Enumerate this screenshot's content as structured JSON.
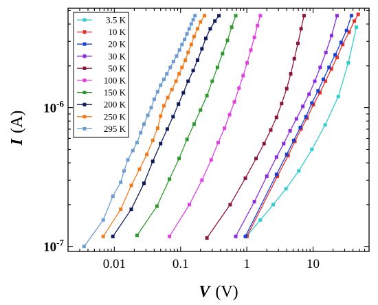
{
  "chart_data": {
    "type": "line",
    "title": "",
    "xlabel_symbol": "V",
    "xlabel_unit": "(V)",
    "ylabel_symbol": "I",
    "ylabel_unit": "(A)",
    "xscale": "log",
    "yscale": "log",
    "xlim": [
      0.002,
      70
    ],
    "ylim": [
      9.2e-08,
      5.2e-06
    ],
    "x_ticks": [
      {
        "value": 0.01,
        "label": "0.01"
      },
      {
        "value": 0.1,
        "label": "0.1"
      },
      {
        "value": 1,
        "label": "1"
      },
      {
        "value": 10,
        "label": "10"
      }
    ],
    "y_ticks": [
      {
        "value": 1e-07,
        "base": "10",
        "exp": "-7"
      },
      {
        "value": 1e-06,
        "base": "10",
        "exp": "-6"
      }
    ],
    "grid": false,
    "legend_position": "top-left",
    "series": [
      {
        "name": "3.5 K",
        "color": "#33cccc",
        "x": [
          0.98,
          1.02,
          1.6,
          2.5,
          3.9,
          6.1,
          9.6,
          15.2,
          24,
          34,
          45
        ],
        "y": [
          1.18e-07,
          1.2e-07,
          1.55e-07,
          2e-07,
          2.6e-07,
          3.5e-07,
          5e-07,
          7.5e-07,
          1.2e-06,
          2.1e-06,
          3.8e-06
        ]
      },
      {
        "name": "10 K",
        "color": "#e8302a",
        "x": [
          1.0,
          2.9,
          4.2,
          5.3,
          6.6,
          8.1,
          10.1,
          12.7,
          15.4,
          18.9,
          23,
          28,
          35,
          42,
          48
        ],
        "y": [
          1.18e-07,
          3.2e-07,
          4.5e-07,
          5.7e-07,
          7e-07,
          8.4e-07,
          1.05e-06,
          1.28e-06,
          1.55e-06,
          1.9e-06,
          2.3e-06,
          2.85e-06,
          3.5e-06,
          4.2e-06,
          4.7e-06
        ]
      },
      {
        "name": "20 K",
        "color": "#1a3fd6",
        "x": [
          0.95,
          2.8,
          4.0,
          5.1,
          6.4,
          7.8,
          9.6,
          11.9,
          14.3,
          17.4,
          21.5,
          26.5,
          32,
          38
        ],
        "y": [
          1.18e-07,
          3.3e-07,
          4.6e-07,
          5.8e-07,
          7.2e-07,
          8.6e-07,
          1.08e-06,
          1.32e-06,
          1.6e-06,
          1.95e-06,
          2.4e-06,
          2.95e-06,
          3.6e-06,
          4.6e-06
        ]
      },
      {
        "name": "30 K",
        "color": "#8a2be2",
        "x": [
          0.68,
          1.3,
          2.0,
          2.8,
          3.6,
          4.5,
          5.6,
          7.0,
          8.7,
          10.6,
          12.8,
          15.6,
          19,
          23
        ],
        "y": [
          1.18e-07,
          2.1e-07,
          3.2e-07,
          4.4e-07,
          5.5e-07,
          6.8e-07,
          8.3e-07,
          1.02e-06,
          1.25e-06,
          1.55e-06,
          1.95e-06,
          2.5e-06,
          3.3e-06,
          4.6e-06
        ]
      },
      {
        "name": "50 K",
        "color": "#8b1538",
        "x": [
          0.25,
          0.56,
          0.95,
          1.38,
          1.82,
          2.3,
          2.8,
          3.35,
          4.0,
          4.6,
          5.2,
          5.9,
          6.6,
          7.3
        ],
        "y": [
          1.15e-07,
          2e-07,
          3.1e-07,
          4.3e-07,
          5.5e-07,
          6.9e-07,
          8.5e-07,
          1.07e-06,
          1.37e-06,
          1.75e-06,
          2.25e-06,
          2.9e-06,
          3.7e-06,
          4.6e-06
        ]
      },
      {
        "name": "100 K",
        "color": "#e040e0",
        "x": [
          0.068,
          0.136,
          0.21,
          0.29,
          0.37,
          0.46,
          0.55,
          0.65,
          0.76,
          0.88,
          1.01,
          1.15,
          1.3,
          1.45,
          1.6
        ],
        "y": [
          1.18e-07,
          2e-07,
          3e-07,
          4.2e-07,
          5.6e-07,
          7.1e-07,
          8.9e-07,
          1.1e-06,
          1.38e-06,
          1.7e-06,
          2.1e-06,
          2.6e-06,
          3.2e-06,
          3.9e-06,
          4.6e-06
        ]
      },
      {
        "name": "150 K",
        "color": "#2e9a2e",
        "x": [
          0.022,
          0.044,
          0.068,
          0.095,
          0.125,
          0.16,
          0.2,
          0.25,
          0.3,
          0.36,
          0.43,
          0.51,
          0.59,
          0.68
        ],
        "y": [
          1.2e-07,
          1.95e-07,
          3.05e-07,
          4.3e-07,
          5.9e-07,
          7.6e-07,
          9.6e-07,
          1.22e-06,
          1.55e-06,
          1.95e-06,
          2.45e-06,
          3.05e-06,
          3.8e-06,
          4.6e-06
        ]
      },
      {
        "name": "200 K",
        "color": "#0f1a5a",
        "x": [
          0.0095,
          0.018,
          0.028,
          0.038,
          0.05,
          0.063,
          0.077,
          0.093,
          0.11,
          0.13,
          0.155,
          0.18,
          0.21,
          0.24,
          0.28,
          0.33,
          0.38
        ],
        "y": [
          1.18e-07,
          1.85e-07,
          2.85e-07,
          4.1e-07,
          5.5e-07,
          7e-07,
          8.6e-07,
          1.06e-06,
          1.28e-06,
          1.55e-06,
          1.85e-06,
          2.2e-06,
          2.65e-06,
          3.15e-06,
          3.7e-06,
          4.2e-06,
          4.6e-06
        ]
      },
      {
        "name": "250 K",
        "color": "#f07a1a",
        "x": [
          0.0068,
          0.0125,
          0.018,
          0.024,
          0.031,
          0.038,
          0.045,
          0.05,
          0.056,
          0.064,
          0.074,
          0.085,
          0.095,
          0.105,
          0.118,
          0.13,
          0.145,
          0.16,
          0.18,
          0.2,
          0.23
        ],
        "y": [
          1.18e-07,
          1.85e-07,
          2.75e-07,
          3.6e-07,
          4.6e-07,
          5.8e-07,
          7.1e-07,
          8.7e-07,
          1.03e-06,
          1.18e-06,
          1.35e-06,
          1.55e-06,
          1.75e-06,
          1.95e-06,
          2.2e-06,
          2.5e-06,
          2.85e-06,
          3.25e-06,
          3.7e-06,
          4.15e-06,
          4.6e-06
        ]
      },
      {
        "name": "295 K",
        "color": "#6b9bd2",
        "x": [
          0.0035,
          0.0068,
          0.0095,
          0.0125,
          0.014,
          0.016,
          0.019,
          0.022,
          0.025,
          0.028,
          0.032,
          0.036,
          0.04,
          0.045,
          0.05,
          0.056,
          0.062,
          0.07,
          0.078,
          0.087,
          0.096,
          0.105,
          0.115,
          0.125,
          0.135,
          0.145,
          0.155,
          0.165
        ],
        "y": [
          1e-07,
          1.55e-07,
          2.3e-07,
          2.9e-07,
          3.5e-07,
          4.2e-07,
          4.9e-07,
          5.6e-07,
          6.6e-07,
          7.6e-07,
          8.8e-07,
          1e-06,
          1.15e-06,
          1.3e-06,
          1.45e-06,
          1.6e-06,
          1.75e-06,
          1.95e-06,
          2.15e-06,
          2.35e-06,
          2.6e-06,
          2.85e-06,
          3.1e-06,
          3.4e-06,
          3.7e-06,
          4e-06,
          4.3e-06,
          4.6e-06
        ]
      }
    ]
  }
}
